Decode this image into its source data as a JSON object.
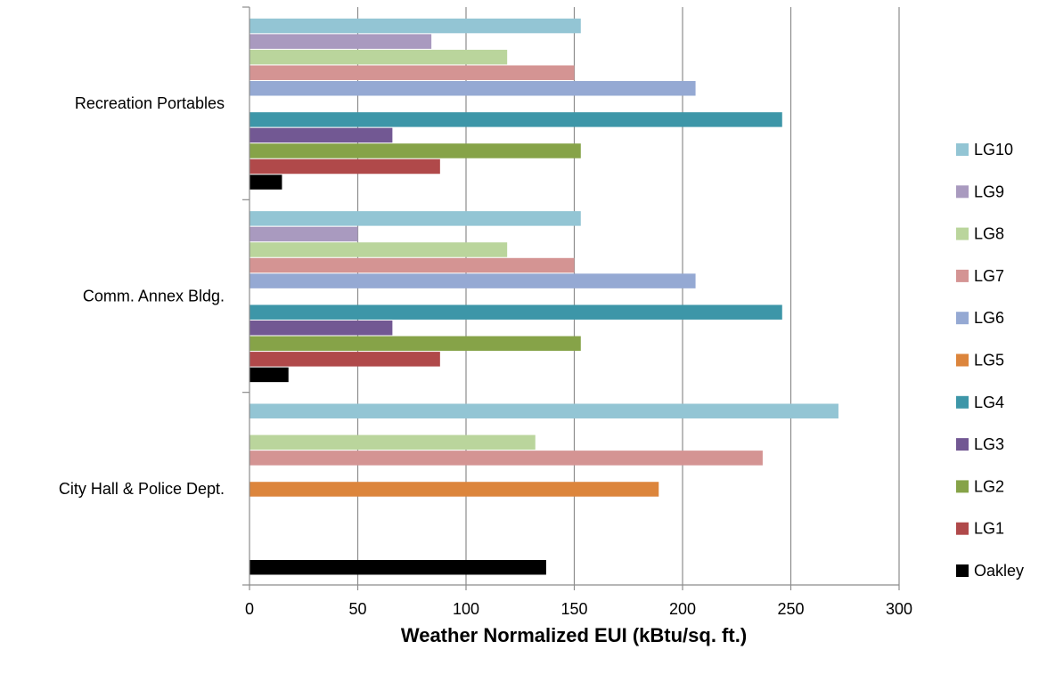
{
  "chart_data": {
    "type": "bar",
    "orientation": "horizontal",
    "title": "",
    "xlabel": "Weather Normalized EUI (kBtu/sq. ft.)",
    "ylabel": "",
    "xlim": [
      0,
      300
    ],
    "xticks": [
      0,
      50,
      100,
      150,
      200,
      250,
      300
    ],
    "grid": "vertical",
    "legend_position": "right",
    "categories": [
      "City Hall & Police Dept.",
      "Comm. Annex Bldg.",
      "Recreation Portables"
    ],
    "series": [
      {
        "name": "Oakley",
        "color": "#000000",
        "values": [
          137,
          18,
          15
        ]
      },
      {
        "name": "LG1",
        "color": "#b0494a",
        "values": [
          null,
          88,
          88
        ]
      },
      {
        "name": "LG2",
        "color": "#86a348",
        "values": [
          null,
          153,
          153
        ]
      },
      {
        "name": "LG3",
        "color": "#725893",
        "values": [
          null,
          66,
          66
        ]
      },
      {
        "name": "LG4",
        "color": "#3d96a8",
        "values": [
          null,
          246,
          246
        ]
      },
      {
        "name": "LG5",
        "color": "#dc853c",
        "values": [
          189,
          null,
          null
        ]
      },
      {
        "name": "LG6",
        "color": "#95a9d3",
        "values": [
          null,
          206,
          206
        ]
      },
      {
        "name": "LG7",
        "color": "#d49493",
        "values": [
          237,
          150,
          150
        ]
      },
      {
        "name": "LG8",
        "color": "#bad59c",
        "values": [
          132,
          119,
          119
        ]
      },
      {
        "name": "LG9",
        "color": "#a99abf",
        "values": [
          null,
          50,
          84
        ]
      },
      {
        "name": "LG10",
        "color": "#93c5d4",
        "values": [
          272,
          153,
          153
        ]
      }
    ]
  }
}
